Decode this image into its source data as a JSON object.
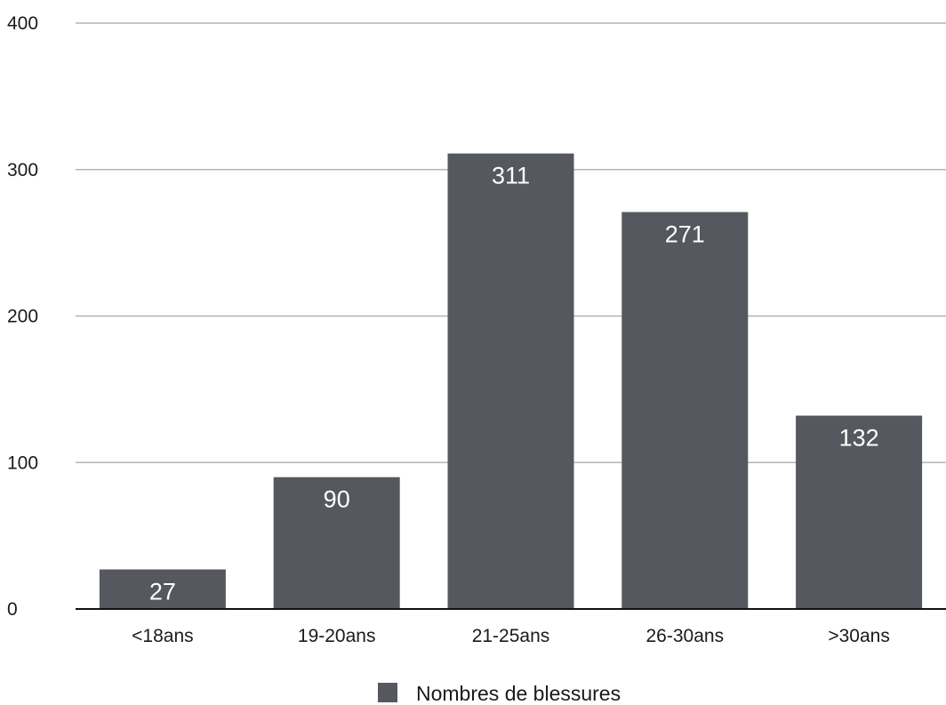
{
  "chart_data": {
    "type": "bar",
    "categories": [
      "<18ans",
      "19-20ans",
      "21-25ans",
      "26-30ans",
      ">30ans"
    ],
    "series": [
      {
        "name": "Nombres de blessures",
        "values": [
          27,
          90,
          311,
          271,
          132
        ]
      }
    ],
    "ylim": [
      0,
      400
    ],
    "yticks": [
      0,
      100,
      200,
      300,
      400
    ],
    "grid": true,
    "legend": "bottom-center",
    "data_labels": true,
    "colors": {
      "bar": "#55585e",
      "grid": "#b4b4b4",
      "axis": "#111111",
      "data_label": "#ffffff"
    }
  }
}
